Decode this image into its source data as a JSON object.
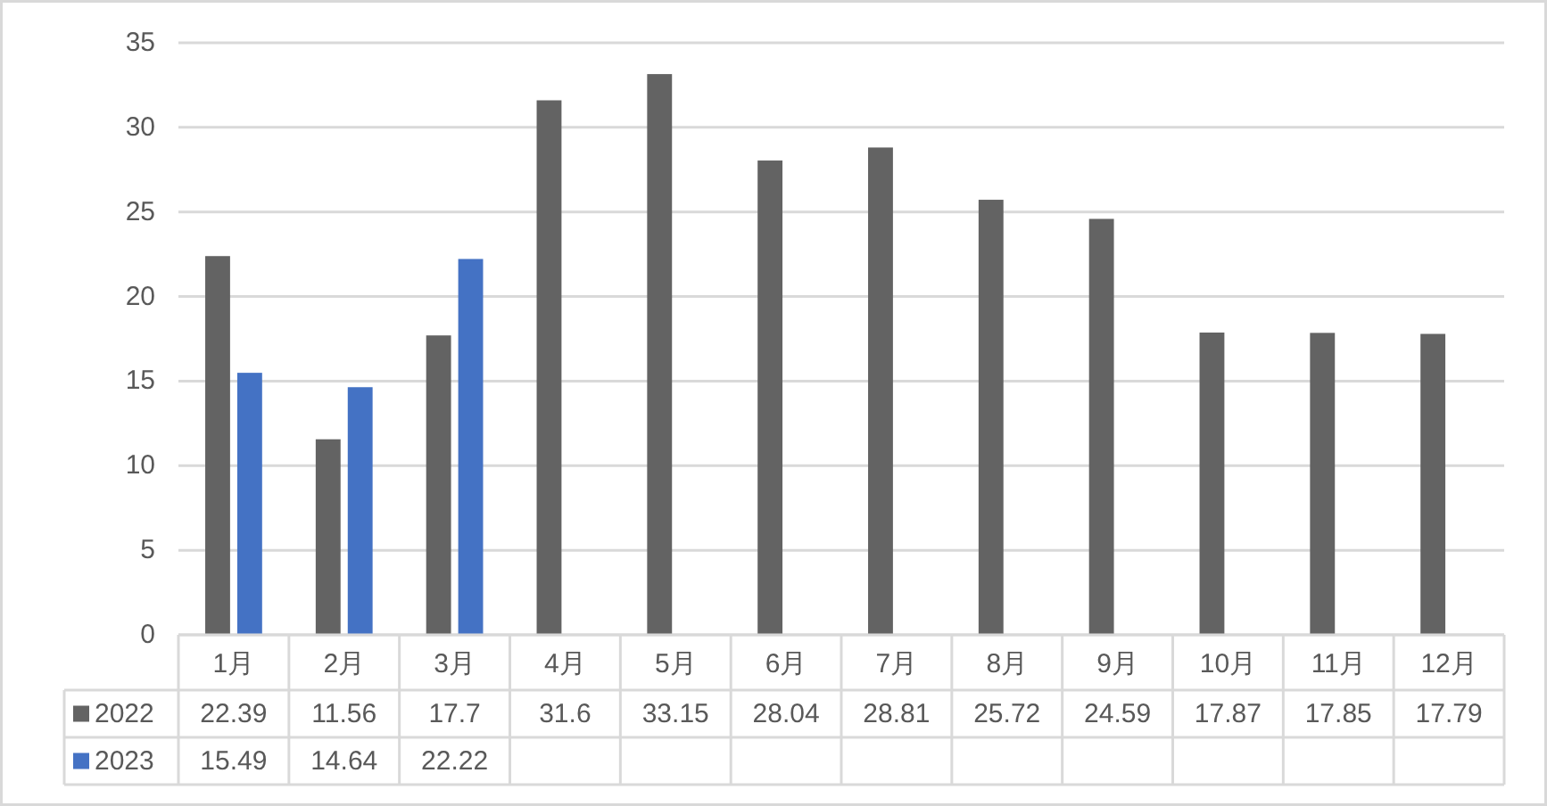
{
  "chart_data": {
    "type": "bar",
    "categories": [
      "1月",
      "2月",
      "3月",
      "4月",
      "5月",
      "6月",
      "7月",
      "8月",
      "9月",
      "10月",
      "11月",
      "12月"
    ],
    "series": [
      {
        "name": "2022",
        "color": "#636363",
        "values": [
          22.39,
          11.56,
          17.7,
          31.6,
          33.15,
          28.04,
          28.81,
          25.72,
          24.59,
          17.87,
          17.85,
          17.79
        ]
      },
      {
        "name": "2023",
        "color": "#4472c4",
        "values": [
          15.49,
          14.64,
          22.22,
          null,
          null,
          null,
          null,
          null,
          null,
          null,
          null,
          null
        ]
      }
    ],
    "ylim": [
      0,
      35
    ],
    "yticks": [
      0,
      5,
      10,
      15,
      20,
      25,
      30,
      35
    ],
    "grid": "y",
    "data_labels": true,
    "legend": "bottom"
  }
}
